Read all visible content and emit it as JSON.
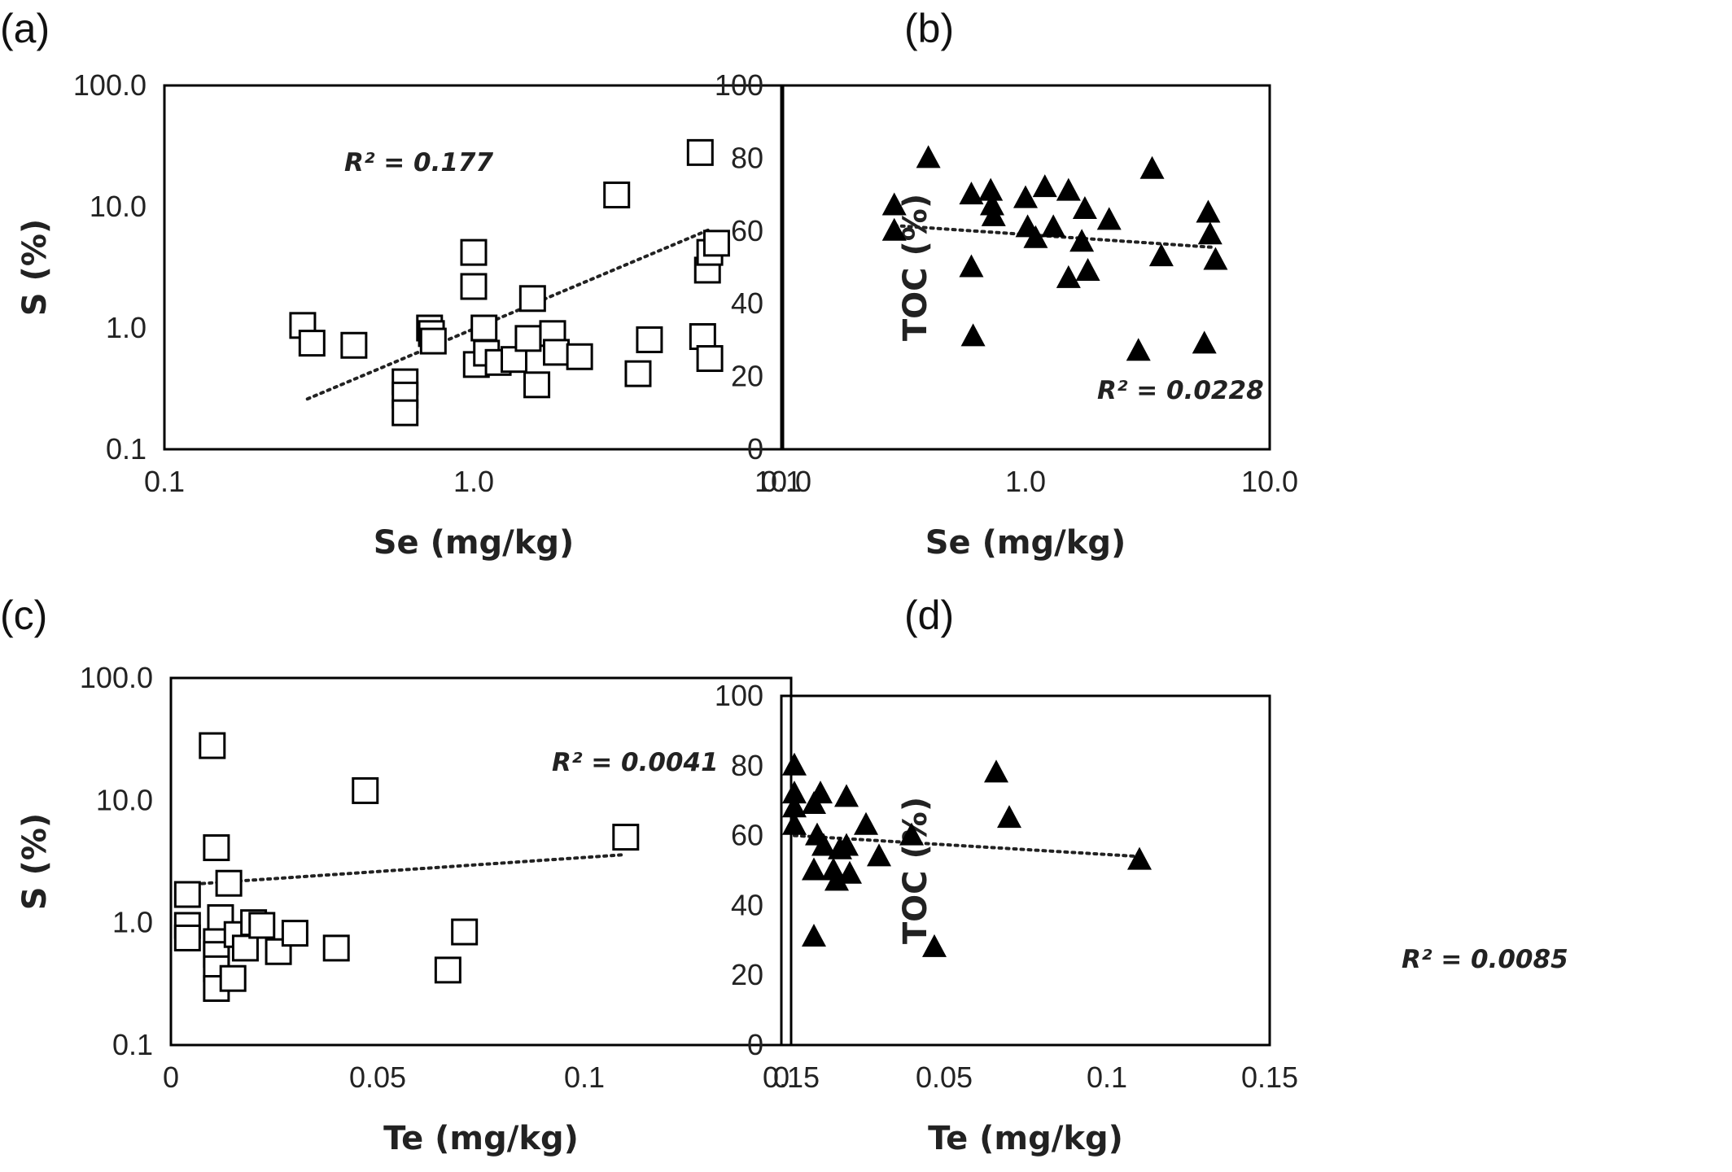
{
  "chart_data": [
    {
      "panel_label": "(a)",
      "type": "scatter",
      "marker": "open-square",
      "xlabel": "Se (mg/kg)",
      "ylabel": "S (%)",
      "xscale": "log",
      "yscale": "log",
      "xlim": [
        0.1,
        10.0
      ],
      "ylim": [
        0.1,
        100.0
      ],
      "xticks": [
        0.1,
        1.0,
        10.0
      ],
      "xtick_labels": [
        "0.1",
        "1.0",
        "10.0"
      ],
      "yticks": [
        0.1,
        1.0,
        10.0,
        100.0
      ],
      "ytick_labels": [
        "0.1",
        "1.0",
        "10.0",
        "100.0"
      ],
      "grid": false,
      "annotation": "R² = 0.177",
      "trendline": {
        "x": [
          0.29,
          5.8
        ],
        "y": [
          0.26,
          6.5
        ]
      },
      "points": [
        {
          "x": 0.28,
          "y": 1.05
        },
        {
          "x": 0.3,
          "y": 0.75
        },
        {
          "x": 0.41,
          "y": 0.72
        },
        {
          "x": 0.6,
          "y": 0.36
        },
        {
          "x": 0.6,
          "y": 0.28
        },
        {
          "x": 0.6,
          "y": 0.2
        },
        {
          "x": 0.72,
          "y": 1.0
        },
        {
          "x": 0.73,
          "y": 0.9
        },
        {
          "x": 0.74,
          "y": 0.78
        },
        {
          "x": 1.0,
          "y": 4.2
        },
        {
          "x": 1.0,
          "y": 2.2
        },
        {
          "x": 1.02,
          "y": 0.5
        },
        {
          "x": 1.08,
          "y": 1.0
        },
        {
          "x": 1.1,
          "y": 0.62
        },
        {
          "x": 1.2,
          "y": 0.52
        },
        {
          "x": 1.35,
          "y": 0.55
        },
        {
          "x": 1.5,
          "y": 0.82
        },
        {
          "x": 1.55,
          "y": 1.75
        },
        {
          "x": 1.6,
          "y": 0.34
        },
        {
          "x": 1.8,
          "y": 0.9
        },
        {
          "x": 1.85,
          "y": 0.63
        },
        {
          "x": 2.2,
          "y": 0.58
        },
        {
          "x": 2.9,
          "y": 12.5
        },
        {
          "x": 3.4,
          "y": 0.42
        },
        {
          "x": 3.7,
          "y": 0.8
        },
        {
          "x": 5.4,
          "y": 28.0
        },
        {
          "x": 5.5,
          "y": 0.85
        },
        {
          "x": 5.7,
          "y": 3.0
        },
        {
          "x": 5.8,
          "y": 4.2
        },
        {
          "x": 5.8,
          "y": 0.56
        },
        {
          "x": 6.1,
          "y": 5.0
        }
      ]
    },
    {
      "panel_label": "(b)",
      "type": "scatter",
      "marker": "filled-triangle",
      "xlabel": "Se (mg/kg)",
      "ylabel": "TOC (%)",
      "xscale": "log",
      "yscale": "linear",
      "xlim": [
        0.1,
        10.0
      ],
      "ylim": [
        0,
        100
      ],
      "xticks": [
        0.1,
        1.0,
        10.0
      ],
      "xtick_labels": [
        "0.1",
        "1.0",
        "10.0"
      ],
      "yticks": [
        0,
        20,
        40,
        60,
        80,
        100
      ],
      "ytick_labels": [
        "0",
        "20",
        "40",
        "60",
        "80",
        "100"
      ],
      "grid": false,
      "annotation": "R² = 0.0228",
      "trendline": {
        "x": [
          0.29,
          5.9
        ],
        "y": [
          61.5,
          55.5
        ]
      },
      "points": [
        {
          "x": 0.29,
          "y": 67
        },
        {
          "x": 0.29,
          "y": 60
        },
        {
          "x": 0.4,
          "y": 80
        },
        {
          "x": 0.6,
          "y": 70
        },
        {
          "x": 0.6,
          "y": 50
        },
        {
          "x": 0.61,
          "y": 31
        },
        {
          "x": 0.72,
          "y": 71
        },
        {
          "x": 0.73,
          "y": 67
        },
        {
          "x": 0.74,
          "y": 64
        },
        {
          "x": 1.0,
          "y": 69
        },
        {
          "x": 1.02,
          "y": 61
        },
        {
          "x": 1.1,
          "y": 58
        },
        {
          "x": 1.2,
          "y": 72
        },
        {
          "x": 1.3,
          "y": 61
        },
        {
          "x": 1.5,
          "y": 71
        },
        {
          "x": 1.5,
          "y": 47
        },
        {
          "x": 1.7,
          "y": 57
        },
        {
          "x": 1.75,
          "y": 66
        },
        {
          "x": 1.8,
          "y": 49
        },
        {
          "x": 2.2,
          "y": 63
        },
        {
          "x": 2.9,
          "y": 27
        },
        {
          "x": 3.3,
          "y": 77
        },
        {
          "x": 3.6,
          "y": 53
        },
        {
          "x": 5.4,
          "y": 29
        },
        {
          "x": 5.6,
          "y": 65
        },
        {
          "x": 5.7,
          "y": 59
        },
        {
          "x": 6.0,
          "y": 52
        }
      ]
    },
    {
      "panel_label": "(c)",
      "type": "scatter",
      "marker": "open-square",
      "xlabel": "Te (mg/kg)",
      "ylabel": "S (%)",
      "xscale": "linear",
      "yscale": "log",
      "xlim": [
        0,
        0.15
      ],
      "ylim": [
        0.1,
        100.0
      ],
      "xticks": [
        0,
        0.05,
        0.1,
        0.15
      ],
      "xtick_labels": [
        "0",
        "0.05",
        "0.1",
        "0.15"
      ],
      "yticks": [
        0.1,
        1.0,
        10.0,
        100.0
      ],
      "ytick_labels": [
        "0.1",
        "1.0",
        "10.0",
        "100.0"
      ],
      "grid": false,
      "annotation": "R² = 0.0041",
      "trendline": {
        "x": [
          0.004,
          0.11
        ],
        "y": [
          2.05,
          3.6
        ]
      },
      "points": [
        {
          "x": 0.004,
          "y": 1.7
        },
        {
          "x": 0.004,
          "y": 0.95
        },
        {
          "x": 0.004,
          "y": 0.75
        },
        {
          "x": 0.01,
          "y": 28.0
        },
        {
          "x": 0.011,
          "y": 4.1
        },
        {
          "x": 0.012,
          "y": 1.1
        },
        {
          "x": 0.011,
          "y": 0.7
        },
        {
          "x": 0.011,
          "y": 0.55
        },
        {
          "x": 0.011,
          "y": 0.42
        },
        {
          "x": 0.011,
          "y": 0.29
        },
        {
          "x": 0.014,
          "y": 2.1
        },
        {
          "x": 0.015,
          "y": 0.35
        },
        {
          "x": 0.016,
          "y": 0.8
        },
        {
          "x": 0.018,
          "y": 0.62
        },
        {
          "x": 0.02,
          "y": 1.0
        },
        {
          "x": 0.022,
          "y": 0.95
        },
        {
          "x": 0.026,
          "y": 0.58
        },
        {
          "x": 0.03,
          "y": 0.82
        },
        {
          "x": 0.04,
          "y": 0.62
        },
        {
          "x": 0.047,
          "y": 12.0
        },
        {
          "x": 0.067,
          "y": 0.41
        },
        {
          "x": 0.071,
          "y": 0.84
        },
        {
          "x": 0.11,
          "y": 5.0
        }
      ]
    },
    {
      "panel_label": "(d)",
      "type": "scatter",
      "marker": "filled-triangle",
      "xlabel": "Te (mg/kg)",
      "ylabel": "TOC (%)",
      "xscale": "linear",
      "yscale": "linear",
      "xlim": [
        0,
        0.15
      ],
      "ylim": [
        0,
        100
      ],
      "xticks": [
        0,
        0.05,
        0.1,
        0.15
      ],
      "xtick_labels": [
        "0",
        "0.05",
        "0.1",
        "0.15"
      ],
      "yticks": [
        0,
        20,
        40,
        60,
        80,
        100
      ],
      "ytick_labels": [
        "0",
        "20",
        "40",
        "60",
        "80",
        "100"
      ],
      "grid": false,
      "annotation": "R² = 0.0085",
      "trendline": {
        "x": [
          0.004,
          0.11
        ],
        "y": [
          60,
          54
        ]
      },
      "points": [
        {
          "x": 0.004,
          "y": 80
        },
        {
          "x": 0.004,
          "y": 72
        },
        {
          "x": 0.004,
          "y": 68
        },
        {
          "x": 0.004,
          "y": 63
        },
        {
          "x": 0.01,
          "y": 69
        },
        {
          "x": 0.012,
          "y": 72
        },
        {
          "x": 0.011,
          "y": 60
        },
        {
          "x": 0.01,
          "y": 50
        },
        {
          "x": 0.01,
          "y": 31
        },
        {
          "x": 0.013,
          "y": 57
        },
        {
          "x": 0.016,
          "y": 50
        },
        {
          "x": 0.017,
          "y": 47
        },
        {
          "x": 0.018,
          "y": 56
        },
        {
          "x": 0.02,
          "y": 71
        },
        {
          "x": 0.02,
          "y": 57
        },
        {
          "x": 0.021,
          "y": 49
        },
        {
          "x": 0.026,
          "y": 63
        },
        {
          "x": 0.03,
          "y": 54
        },
        {
          "x": 0.04,
          "y": 60
        },
        {
          "x": 0.047,
          "y": 28
        },
        {
          "x": 0.066,
          "y": 78
        },
        {
          "x": 0.07,
          "y": 65
        },
        {
          "x": 0.11,
          "y": 53
        }
      ]
    }
  ]
}
